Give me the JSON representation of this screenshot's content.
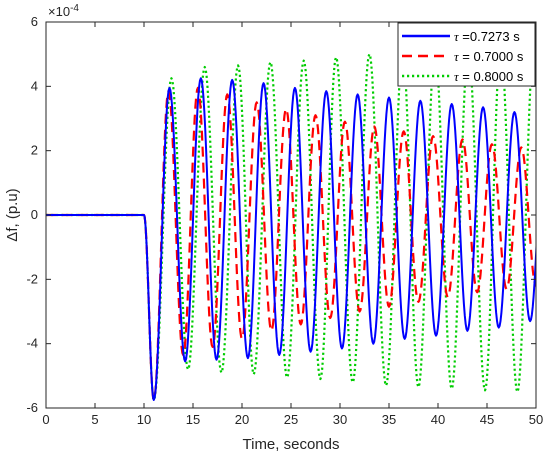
{
  "chart_data": {
    "type": "line",
    "title": "",
    "xlabel": "Time, seconds",
    "ylabel": "Δf, (p.u)",
    "exponent_label": "×10",
    "exponent_power": "-4",
    "xlim": [
      0,
      50
    ],
    "ylim": [
      -6,
      6
    ],
    "x_ticks": [
      "0",
      "5",
      "10",
      "15",
      "20",
      "25",
      "30",
      "35",
      "40",
      "45",
      "50"
    ],
    "y_ticks": [
      "-6",
      "-4",
      "-2",
      "0",
      "2",
      "4",
      "6"
    ],
    "grid": false,
    "legend_position": "top-right",
    "disturbance_time": 10,
    "series": [
      {
        "name_symbol": "τ",
        "name_rest": " =0.7273 s",
        "color": "#0000ff",
        "style": "solid",
        "period": 3.2,
        "peaks": [
          {
            "x": 11.0,
            "y": -5.75
          },
          {
            "x": 12.6,
            "y": 3.95
          },
          {
            "x": 14.2,
            "y": -4.55
          },
          {
            "x": 15.8,
            "y": 4.25
          },
          {
            "x": 17.4,
            "y": -4.5
          },
          {
            "x": 19.0,
            "y": 4.2
          },
          {
            "x": 20.6,
            "y": -4.45
          },
          {
            "x": 22.2,
            "y": 4.1
          },
          {
            "x": 23.8,
            "y": -4.35
          },
          {
            "x": 25.4,
            "y": 3.95
          },
          {
            "x": 27.0,
            "y": -4.25
          },
          {
            "x": 28.6,
            "y": 3.85
          },
          {
            "x": 30.2,
            "y": -4.15
          },
          {
            "x": 31.8,
            "y": 3.75
          },
          {
            "x": 33.4,
            "y": -4.0
          },
          {
            "x": 35.0,
            "y": 3.65
          },
          {
            "x": 36.6,
            "y": -3.85
          },
          {
            "x": 38.2,
            "y": 3.55
          },
          {
            "x": 39.8,
            "y": -3.75
          },
          {
            "x": 41.4,
            "y": 3.45
          },
          {
            "x": 43.0,
            "y": -3.6
          },
          {
            "x": 44.6,
            "y": 3.35
          },
          {
            "x": 46.2,
            "y": -3.5
          },
          {
            "x": 47.8,
            "y": 3.2
          },
          {
            "x": 49.4,
            "y": -3.3
          }
        ]
      },
      {
        "name_symbol": "τ",
        "name_rest": " = 0.7000 s",
        "color": "#ff0000",
        "style": "dashed",
        "period": 3.05,
        "peaks": [
          {
            "x": 11.0,
            "y": -5.75
          },
          {
            "x": 12.5,
            "y": 3.85
          },
          {
            "x": 14.0,
            "y": -4.35
          },
          {
            "x": 15.5,
            "y": 3.95
          },
          {
            "x": 17.0,
            "y": -4.1
          },
          {
            "x": 18.5,
            "y": 3.75
          },
          {
            "x": 20.0,
            "y": -3.85
          },
          {
            "x": 21.5,
            "y": 3.5
          },
          {
            "x": 23.0,
            "y": -3.6
          },
          {
            "x": 24.5,
            "y": 3.3
          },
          {
            "x": 26.0,
            "y": -3.4
          },
          {
            "x": 27.5,
            "y": 3.1
          },
          {
            "x": 29.0,
            "y": -3.2
          },
          {
            "x": 30.5,
            "y": 2.9
          },
          {
            "x": 32.0,
            "y": -3.0
          },
          {
            "x": 33.5,
            "y": 2.75
          },
          {
            "x": 35.0,
            "y": -2.85
          },
          {
            "x": 36.5,
            "y": 2.6
          },
          {
            "x": 38.0,
            "y": -2.7
          },
          {
            "x": 39.5,
            "y": 2.45
          },
          {
            "x": 41.0,
            "y": -2.55
          },
          {
            "x": 42.5,
            "y": 2.35
          },
          {
            "x": 44.0,
            "y": -2.4
          },
          {
            "x": 45.5,
            "y": 2.2
          },
          {
            "x": 47.0,
            "y": -2.3
          },
          {
            "x": 48.5,
            "y": 2.1
          },
          {
            "x": 50.0,
            "y": -2.2
          }
        ]
      },
      {
        "name_symbol": "τ",
        "name_rest": " = 0.8000 s",
        "color": "#00cc00",
        "style": "dotted",
        "period": 3.35,
        "peaks": [
          {
            "x": 11.0,
            "y": -5.75
          },
          {
            "x": 12.8,
            "y": 4.25
          },
          {
            "x": 14.5,
            "y": -4.8
          },
          {
            "x": 16.2,
            "y": 4.6
          },
          {
            "x": 17.9,
            "y": -4.9
          },
          {
            "x": 19.6,
            "y": 4.65
          },
          {
            "x": 21.2,
            "y": -4.95
          },
          {
            "x": 22.9,
            "y": 4.75
          },
          {
            "x": 24.6,
            "y": -5.05
          },
          {
            "x": 26.3,
            "y": 4.8
          },
          {
            "x": 28.0,
            "y": -5.1
          },
          {
            "x": 29.6,
            "y": 4.9
          },
          {
            "x": 31.3,
            "y": -5.2
          },
          {
            "x": 33.0,
            "y": 5.0
          },
          {
            "x": 34.7,
            "y": -5.3
          },
          {
            "x": 36.4,
            "y": 5.05
          },
          {
            "x": 38.0,
            "y": -5.35
          },
          {
            "x": 39.7,
            "y": 5.1
          },
          {
            "x": 41.4,
            "y": -5.4
          },
          {
            "x": 43.1,
            "y": 5.15
          },
          {
            "x": 44.8,
            "y": -5.45
          },
          {
            "x": 46.4,
            "y": 5.2
          },
          {
            "x": 48.1,
            "y": -5.5
          },
          {
            "x": 49.8,
            "y": 5.25
          }
        ]
      }
    ]
  }
}
